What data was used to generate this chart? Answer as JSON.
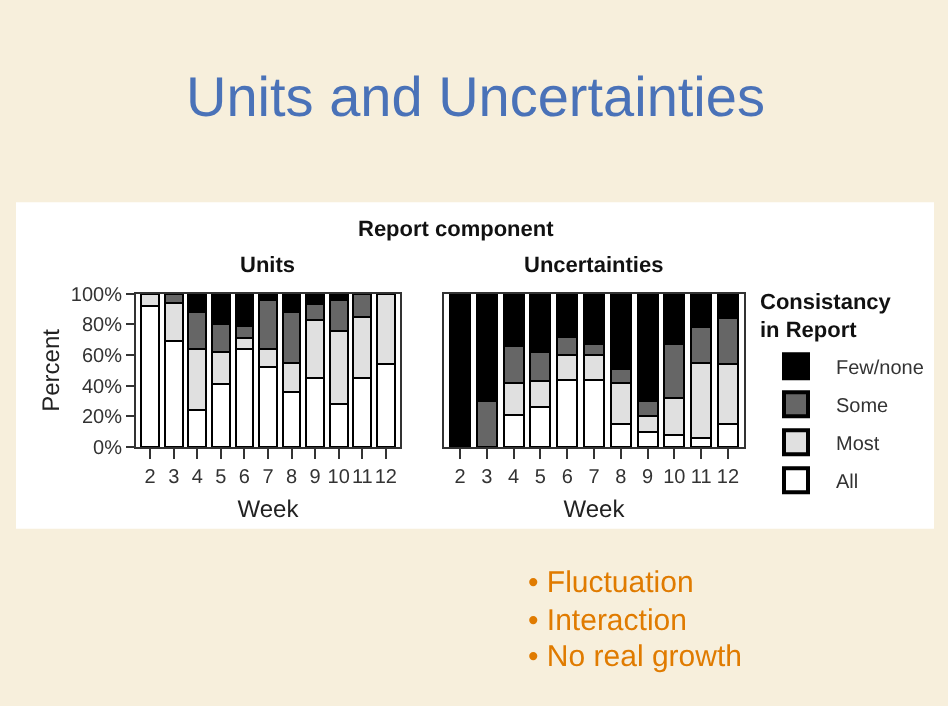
{
  "chart_data": [
    {
      "type": "bar",
      "title": "Units",
      "xlabel": "Week",
      "ylabel": "Percent",
      "stacked": true,
      "categories": [
        "2",
        "3",
        "4",
        "5",
        "6",
        "7",
        "8",
        "9",
        "10",
        "11",
        "12"
      ],
      "ylim": [
        0,
        100
      ],
      "yticks": [
        {
          "value": 0,
          "label": "0%"
        },
        {
          "value": 20,
          "label": "20%"
        },
        {
          "value": 40,
          "label": "40%"
        },
        {
          "value": 60,
          "label": "60%"
        },
        {
          "value": 80,
          "label": "80%"
        },
        {
          "value": 100,
          "label": "100%"
        }
      ],
      "series": [
        {
          "color": "#ffffff",
          "values": [
            92,
            69,
            24,
            41,
            64,
            52,
            36,
            45,
            28,
            45,
            54
          ]
        },
        {
          "color": "#e0e0e0",
          "values": [
            8,
            25,
            40,
            21,
            7,
            12,
            19,
            38,
            48,
            40,
            46
          ]
        },
        {
          "color": "#666666",
          "values": [
            0,
            6,
            24,
            18,
            8,
            32,
            33,
            10,
            20,
            15,
            0
          ]
        },
        {
          "color": "#000000",
          "values": [
            0,
            0,
            12,
            20,
            21,
            4,
            12,
            7,
            4,
            0,
            0
          ]
        }
      ],
      "annotations": [
        "Units and Uncertainties",
        "Report component",
        "• Fluctuation",
        "• Interaction",
        "• No real growth"
      ]
    },
    {
      "type": "bar",
      "title": "Uncertainties",
      "xlabel": "Week",
      "stacked": true,
      "tick_labels": "x",
      "legend": "right",
      "legend_title": "Consistancy in Report",
      "categories": [
        "2",
        "3",
        "4",
        "5",
        "6",
        "7",
        "8",
        "9",
        "10",
        "11",
        "12"
      ],
      "ylim": [
        0,
        100
      ],
      "series": [
        {
          "name": "All",
          "color": "#ffffff",
          "values": [
            0,
            0,
            21,
            26,
            44,
            44,
            15,
            10,
            8,
            6,
            15
          ]
        },
        {
          "name": "Most",
          "color": "#e0e0e0",
          "values": [
            0,
            0,
            21,
            17,
            16,
            16,
            27,
            10,
            24,
            49,
            39
          ]
        },
        {
          "name": "Some",
          "color": "#666666",
          "values": [
            0,
            30,
            24,
            19,
            12,
            7,
            9,
            10,
            35,
            23,
            30
          ]
        },
        {
          "name": "Few/none",
          "color": "#000000",
          "values": [
            100,
            70,
            34,
            38,
            28,
            33,
            49,
            70,
            33,
            22,
            16
          ]
        }
      ]
    }
  ]
}
